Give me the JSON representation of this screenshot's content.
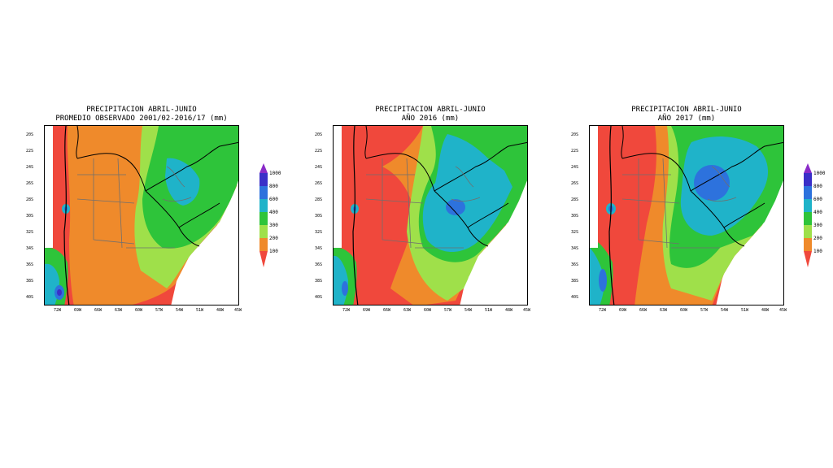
{
  "colors": {
    "c100": "#f0483c",
    "c200": "#ef8a2b",
    "c300": "#9fe04a",
    "c400": "#2ec43a",
    "c600": "#1fb3c9",
    "c800": "#2d72dd",
    "c1000": "#3a2fc8",
    "top": "#8a2bc8",
    "boundary": "#000000",
    "province": "#6f6f6f"
  },
  "panels": [
    {
      "title_line1": "PRECIPITACION ABRIL-JUNIO",
      "title_line2": "PROMEDIO OBSERVADO 2001/02-2016/17 (mm)"
    },
    {
      "title_line1": "PRECIPITACION ABRIL-JUNIO",
      "title_line2": "AÑO 2016 (mm)"
    },
    {
      "title_line1": "PRECIPITACION ABRIL-JUNIO",
      "title_line2": "AÑO 2017 (mm)"
    }
  ],
  "lat_labels": [
    "20S",
    "22S",
    "24S",
    "26S",
    "28S",
    "30S",
    "32S",
    "34S",
    "36S",
    "38S",
    "40S"
  ],
  "lon_labels": [
    "72W",
    "69W",
    "66W",
    "63W",
    "60W",
    "57W",
    "54W",
    "51W",
    "48W",
    "45W"
  ],
  "legends": [
    {
      "labels": [
        "1000",
        "800",
        "600",
        "400",
        "300",
        "200",
        "100"
      ]
    },
    {
      "labels": [
        "1000",
        "800",
        "600",
        "400",
        "300",
        "200",
        "100"
      ]
    }
  ]
}
